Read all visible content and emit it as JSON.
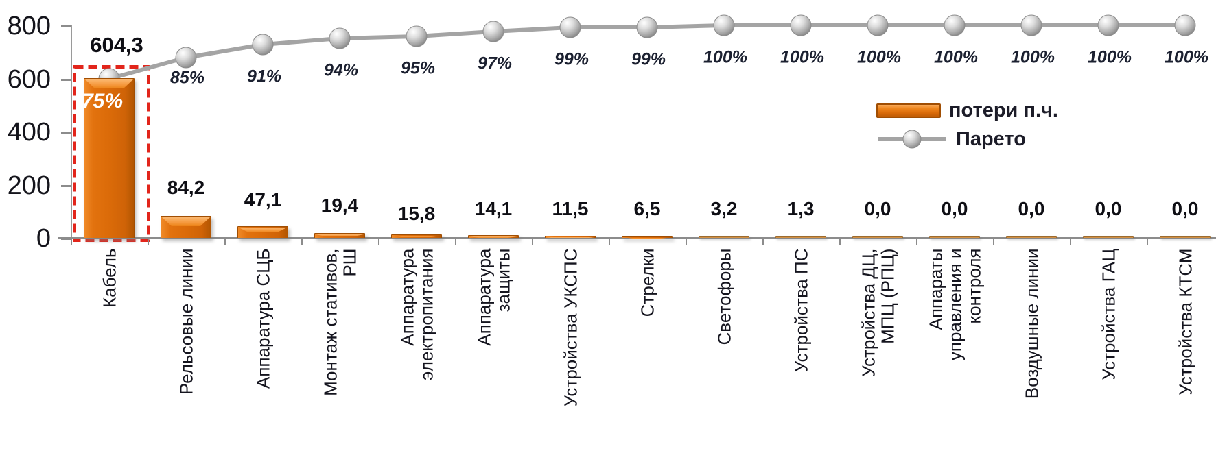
{
  "chart_data": {
    "type": "bar",
    "subtype": "pareto-combo-bar-line",
    "title": "",
    "categories": [
      "Кабель",
      "Рельсовые линии",
      "Аппаратура СЦБ",
      "Монтаж стативов,\nРШ",
      "Аппаратура\nэлектропитания",
      "Аппаратура\nзащиты",
      "Устройства УКСПС",
      "Стрелки",
      "Светофоры",
      "Устройства  ПС",
      "Устройства ДЦ,\nМПЦ (РПЦ)",
      "Аппараты\nуправления и\nконтроля",
      "Воздушные линии",
      "Устройства ГАЦ",
      "Устройства КТСМ"
    ],
    "series": [
      {
        "name": "потери п.ч.",
        "type": "bar",
        "values": [
          604.3,
          84.2,
          47.1,
          19.4,
          15.8,
          14.1,
          11.5,
          6.5,
          3.2,
          1.3,
          0.0,
          0.0,
          0.0,
          0.0,
          0.0
        ],
        "value_labels": [
          "604,3",
          "84,2",
          "47,1",
          "19,4",
          "15,8",
          "14,1",
          "11,5",
          "6,5",
          "3,2",
          "1,3",
          "0,0",
          "0,0",
          "0,0",
          "0,0",
          "0,0"
        ]
      },
      {
        "name": "Парето",
        "type": "line",
        "cumulative_percent": [
          75,
          85,
          91,
          94,
          95,
          97,
          99,
          99,
          100,
          100,
          100,
          100,
          100,
          100,
          100
        ],
        "percent_labels": [
          "75%",
          "85%",
          "91%",
          "94%",
          "95%",
          "97%",
          "99%",
          "99%",
          "100%",
          "100%",
          "100%",
          "100%",
          "100%",
          "100%",
          "100%"
        ]
      }
    ],
    "y_axis": {
      "min": 0,
      "max": 800,
      "tick_labels": [
        "800",
        "600",
        "400",
        "200",
        "0"
      ],
      "gridlines": false
    },
    "secondary_axis": {
      "min_percent": 0,
      "max_percent": 100,
      "visible": false
    },
    "legend": {
      "position": "center-right",
      "items": [
        {
          "type": "bar",
          "label": "потери п.ч."
        },
        {
          "type": "line",
          "label": "Парето"
        }
      ]
    },
    "annotations": {
      "highlight": "dashed red rectangle around first bar (Кабель)",
      "first_bar_inner_label": "75%"
    },
    "colors": {
      "bar_fill": "#db6b09",
      "bar_highlight": "#f9a855",
      "bar_dark": "#b25602",
      "tiny_bar": "#c99455",
      "line": "#a4a4a4",
      "marker": "#b8b8b8",
      "highlight_box": "#e2251b",
      "text": "#15151c",
      "inside_label": "#ffffff",
      "axis": "#8c8c8c"
    }
  }
}
